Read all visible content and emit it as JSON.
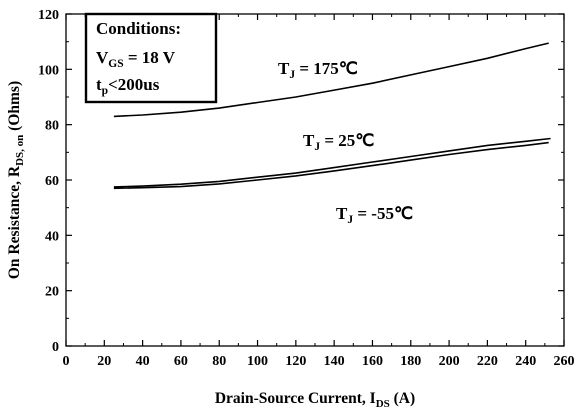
{
  "chart_data": {
    "type": "line",
    "xlabel": "Drain-Source Current, I",
    "xlabel_sub": "DS",
    "xlabel_suffix": " (A)",
    "ylabel": "On Resistance, R",
    "ylabel_sub": "DS, on",
    "ylabel_suffix": " (Ohms)",
    "xlim": [
      0,
      260
    ],
    "ylim": [
      0,
      120
    ],
    "x_ticks": [
      "0",
      "20",
      "40",
      "60",
      "80",
      "100",
      "120",
      "140",
      "160",
      "180",
      "200",
      "220",
      "240",
      "260"
    ],
    "y_ticks": [
      "0",
      "20",
      "40",
      "60",
      "80",
      "100",
      "120"
    ],
    "grid": false,
    "conditions": {
      "title": "Conditions:",
      "vgs_main": "V",
      "vgs_sub": "GS",
      "vgs_value": " = 18 V",
      "tp_main": "t",
      "tp_sub": "p",
      "tp_value": "<200us"
    },
    "series": [
      {
        "name": "T_J = 175℃",
        "label_main": "T",
        "label_sub": "J",
        "label_value": " = 175℃",
        "x": [
          25,
          40,
          60,
          80,
          100,
          120,
          140,
          160,
          180,
          200,
          220,
          240,
          252
        ],
        "y": [
          83,
          83.5,
          84.5,
          86,
          88,
          90,
          92.5,
          95,
          98,
          101,
          104,
          107.5,
          109.5
        ]
      },
      {
        "name": "T_J = 25℃",
        "label_main": "T",
        "label_sub": "J",
        "label_value": " = 25℃",
        "x": [
          25,
          40,
          60,
          80,
          100,
          120,
          140,
          160,
          180,
          200,
          220,
          240,
          253
        ],
        "y": [
          57.5,
          57.8,
          58.5,
          59.5,
          61,
          62.5,
          64.5,
          66.5,
          68.5,
          70.5,
          72.5,
          74,
          75
        ]
      },
      {
        "name": "T_J = -55℃",
        "label_main": "T",
        "label_sub": "J",
        "label_value": " = -55℃",
        "x": [
          25,
          40,
          60,
          80,
          100,
          120,
          140,
          160,
          180,
          200,
          220,
          240,
          252
        ],
        "y": [
          57,
          57.2,
          57.6,
          58.6,
          60,
          61.5,
          63.3,
          65.2,
          67.2,
          69.2,
          71,
          72.5,
          73.5
        ]
      }
    ]
  }
}
